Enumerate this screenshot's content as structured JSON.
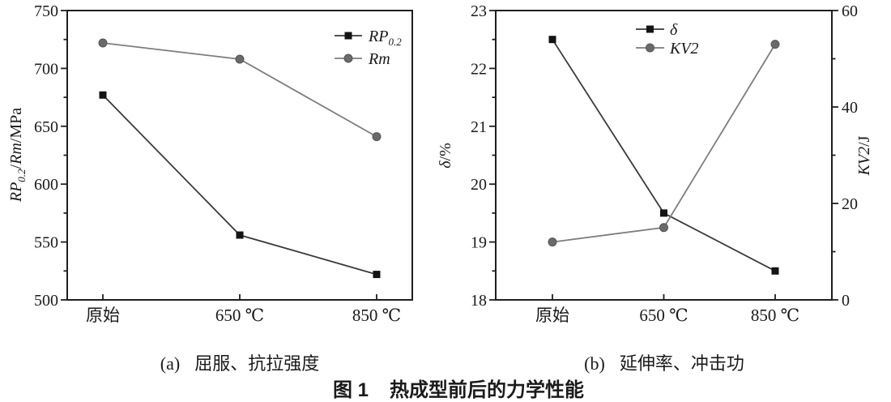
{
  "figure": {
    "caption_label": "图 1",
    "caption_text": "热成型前后的力学性能",
    "sub_captions": [
      {
        "index": "(a)",
        "text": "屈服、抗拉强度"
      },
      {
        "index": "(b)",
        "text": "延伸率、冲击功"
      }
    ]
  },
  "colors": {
    "axis": "#1f1f1f",
    "text": "#1a1a1a",
    "dark_line": "#3a3a3a",
    "dark_marker": "#141414",
    "gray_line": "#7d7d7d",
    "gray_marker": "#6a6a6a",
    "gray_marker_edge": "#555555",
    "background": "#ffffff"
  },
  "chart_data": [
    {
      "type": "line",
      "panel": "a",
      "title": "(a) 屈服、抗拉强度",
      "categories": [
        "原始",
        "650 ℃",
        "850 ℃"
      ],
      "ylabel": "RP0.2/Rm/MPa",
      "ylabel_segments": [
        {
          "t": "RP",
          "i": true
        },
        {
          "t": "0.2",
          "i": true,
          "sub": true
        },
        {
          "t": "/",
          "i": false
        },
        {
          "t": "Rm",
          "i": true
        },
        {
          "t": "/MPa",
          "i": false
        }
      ],
      "ylim": [
        500,
        750
      ],
      "yticks": [
        500,
        550,
        600,
        650,
        700,
        750
      ],
      "yticks_minor": [
        525,
        575,
        625,
        675,
        725
      ],
      "grid": false,
      "legend_position": "top-right",
      "series": [
        {
          "name": "RP0.2",
          "name_segments": [
            {
              "t": "RP",
              "i": true
            },
            {
              "t": "0.2",
              "i": true,
              "sub": true
            }
          ],
          "marker": "square",
          "palette": "dark",
          "axis": "left",
          "values": [
            677,
            556,
            522
          ]
        },
        {
          "name": "Rm",
          "name_segments": [
            {
              "t": "Rm",
              "i": true
            }
          ],
          "marker": "circle",
          "palette": "gray",
          "axis": "left",
          "values": [
            722,
            708,
            641
          ]
        }
      ]
    },
    {
      "type": "line",
      "panel": "b",
      "title": "(b) 延伸率、冲击功",
      "categories": [
        "原始",
        "650 ℃",
        "850 ℃"
      ],
      "ylabel_left": "δ/%",
      "ylabel_left_segments": [
        {
          "t": "δ",
          "i": true
        },
        {
          "t": "/%",
          "i": false
        }
      ],
      "ylabel_right": "KV2/J",
      "ylabel_right_segments": [
        {
          "t": "KV2",
          "i": true
        },
        {
          "t": "/J",
          "i": false
        }
      ],
      "ylim_left": [
        18,
        23
      ],
      "yticks_left": [
        18,
        19,
        20,
        21,
        22,
        23
      ],
      "yticks_left_minor": [
        18.5,
        19.5,
        20.5,
        21.5,
        22.5
      ],
      "ylim_right": [
        0,
        60
      ],
      "yticks_right": [
        0,
        20,
        40,
        60
      ],
      "yticks_right_minor": [
        10,
        30,
        50
      ],
      "grid": false,
      "legend_position": "top-center",
      "series": [
        {
          "name": "δ",
          "name_segments": [
            {
              "t": "δ",
              "i": true
            }
          ],
          "marker": "square",
          "palette": "dark",
          "axis": "left",
          "values": [
            22.5,
            19.5,
            18.5
          ]
        },
        {
          "name": "KV2",
          "name_segments": [
            {
              "t": "KV2",
              "i": true
            }
          ],
          "marker": "circle",
          "palette": "gray",
          "axis": "right",
          "values": [
            12,
            15,
            53
          ]
        }
      ]
    }
  ]
}
